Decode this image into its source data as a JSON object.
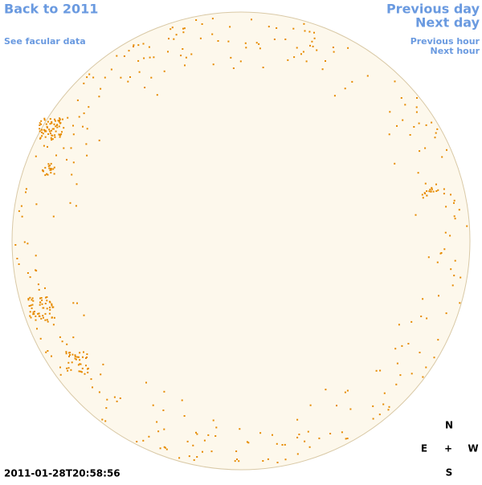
{
  "nav": {
    "back": "Back to 2011",
    "facular": "See facular data",
    "previous_day": "Previous day",
    "next_day": "Next day",
    "previous_hour": "Previous hour",
    "next_hour": "Next hour"
  },
  "timestamp": "2011-01-28T20:58:56",
  "compass": {
    "north": "N",
    "east": "E",
    "center": "+",
    "west": "W",
    "south": "S"
  }
}
